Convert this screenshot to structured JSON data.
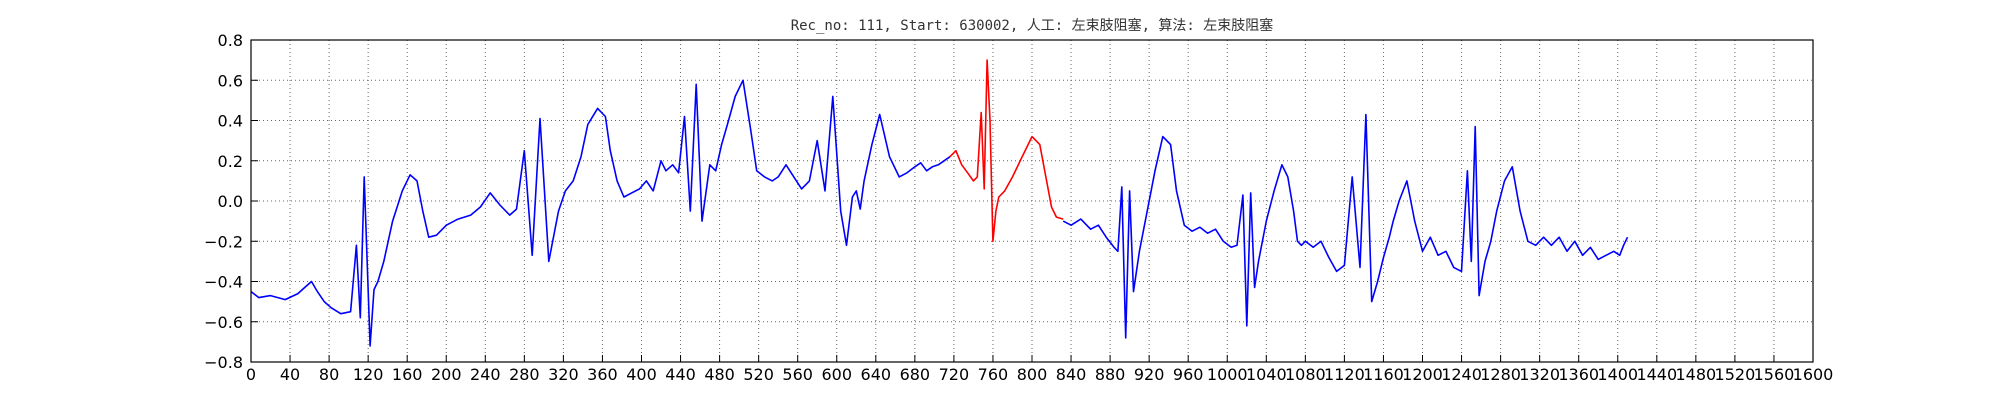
{
  "chart_data": {
    "type": "line",
    "title": "Rec_no: 111, Start: 630002, 人工: 左束肢阻塞, 算法: 左束肢阻塞",
    "xlabel": "",
    "ylabel": "",
    "xlim": [
      0,
      1600
    ],
    "ylim": [
      -0.8,
      0.8
    ],
    "grid": true,
    "yticks": [
      -0.8,
      -0.6,
      -0.4,
      -0.2,
      0.0,
      0.2,
      0.4,
      0.6,
      0.8
    ],
    "ytick_labels": [
      "−0.8",
      "−0.6",
      "−0.4",
      "−0.2",
      "0.0",
      "0.2",
      "0.4",
      "0.6",
      "0.8"
    ],
    "xticks": [
      0,
      40,
      80,
      120,
      160,
      200,
      240,
      280,
      320,
      360,
      400,
      440,
      480,
      520,
      560,
      600,
      640,
      680,
      720,
      760,
      800,
      840,
      880,
      920,
      960,
      1000,
      1040,
      1080,
      1120,
      1160,
      1200,
      1240,
      1280,
      1320,
      1360,
      1400,
      1440,
      1480,
      1520,
      1560,
      1600
    ],
    "series": [
      {
        "color": "#0000ff",
        "x": [
          0,
          8,
          20,
          35,
          48,
          55,
          62,
          68,
          75,
          82,
          92,
          102,
          108,
          112,
          116,
          122,
          126,
          130,
          136,
          145,
          155,
          163,
          170,
          176,
          182,
          190,
          200,
          212,
          225,
          235,
          245,
          255,
          265,
          272,
          280,
          288,
          296,
          305,
          315,
          322,
          330,
          338,
          345,
          355,
          363,
          368,
          375,
          382,
          390,
          398,
          405,
          412,
          420,
          425,
          432,
          438,
          444,
          450,
          456,
          462,
          470,
          476,
          482,
          488,
          496,
          504,
          512,
          518,
          526,
          534,
          540,
          548,
          556,
          564,
          572,
          580,
          588,
          596,
          604,
          610,
          616,
          620,
          624,
          628,
          636,
          644,
          654,
          664,
          672,
          680,
          686,
          692,
          698,
          704,
          710,
          716
        ],
        "y": [
          -0.45,
          -0.48,
          -0.47,
          -0.49,
          -0.46,
          -0.43,
          -0.4,
          -0.45,
          -0.5,
          -0.53,
          -0.56,
          -0.55,
          -0.22,
          -0.58,
          0.12,
          -0.72,
          -0.44,
          -0.4,
          -0.3,
          -0.1,
          0.05,
          0.13,
          0.1,
          -0.05,
          -0.18,
          -0.17,
          -0.12,
          -0.09,
          -0.07,
          -0.03,
          0.04,
          -0.02,
          -0.07,
          -0.04,
          0.25,
          -0.27,
          0.41,
          -0.3,
          -0.05,
          0.05,
          0.1,
          0.22,
          0.38,
          0.46,
          0.42,
          0.25,
          0.1,
          0.02,
          0.04,
          0.06,
          0.1,
          0.05,
          0.2,
          0.15,
          0.18,
          0.14,
          0.42,
          -0.05,
          0.58,
          -0.1,
          0.18,
          0.15,
          0.28,
          0.38,
          0.52,
          0.6,
          0.35,
          0.15,
          0.12,
          0.1,
          0.12,
          0.18,
          0.12,
          0.06,
          0.1,
          0.3,
          0.05,
          0.52,
          -0.05,
          -0.22,
          0.02,
          0.05,
          -0.04,
          0.1,
          0.28,
          0.43,
          0.22,
          0.12,
          0.14,
          0.17,
          0.19,
          0.15,
          0.17,
          0.18,
          0.2,
          0.22
        ]
      },
      {
        "color": "#ff0000",
        "x": [
          716,
          722,
          728,
          734,
          740,
          744,
          748,
          751,
          754,
          757,
          760,
          763,
          766,
          772,
          780,
          790,
          800,
          808,
          815,
          820,
          825,
          832
        ],
        "y": [
          0.22,
          0.25,
          0.18,
          0.14,
          0.1,
          0.12,
          0.44,
          0.06,
          0.7,
          0.4,
          -0.2,
          -0.05,
          0.02,
          0.05,
          0.12,
          0.22,
          0.32,
          0.28,
          0.1,
          -0.03,
          -0.08,
          -0.09
        ]
      },
      {
        "color": "#0000ff",
        "x": [
          832,
          840,
          850,
          860,
          868,
          876,
          884,
          888,
          892,
          896,
          900,
          904,
          910,
          918,
          926,
          934,
          942,
          948,
          956,
          964,
          972,
          980,
          988,
          996,
          1004,
          1010,
          1016,
          1020,
          1024,
          1028,
          1032,
          1036,
          1040,
          1048,
          1056,
          1062,
          1068,
          1072,
          1076,
          1080,
          1088,
          1096,
          1104,
          1112,
          1120,
          1128,
          1136,
          1142,
          1148,
          1154,
          1160,
          1166,
          1170,
          1176,
          1184,
          1192,
          1200,
          1208,
          1216,
          1224,
          1232,
          1240,
          1246,
          1250,
          1254,
          1258,
          1264,
          1270,
          1276,
          1284,
          1292,
          1300,
          1308,
          1316,
          1324,
          1332,
          1340,
          1348,
          1356,
          1364,
          1372,
          1380,
          1388,
          1396,
          1402,
          1406,
          1410
        ],
        "y": [
          -0.1,
          -0.12,
          -0.09,
          -0.14,
          -0.12,
          -0.18,
          -0.23,
          -0.25,
          0.07,
          -0.68,
          0.05,
          -0.45,
          -0.25,
          -0.05,
          0.15,
          0.32,
          0.28,
          0.05,
          -0.12,
          -0.15,
          -0.13,
          -0.16,
          -0.14,
          -0.2,
          -0.23,
          -0.22,
          0.03,
          -0.62,
          0.04,
          -0.43,
          -0.3,
          -0.2,
          -0.1,
          0.05,
          0.18,
          0.12,
          -0.05,
          -0.2,
          -0.22,
          -0.2,
          -0.23,
          -0.2,
          -0.28,
          -0.35,
          -0.32,
          0.12,
          -0.33,
          0.43,
          -0.5,
          -0.4,
          -0.28,
          -0.18,
          -0.1,
          0.0,
          0.1,
          -0.1,
          -0.25,
          -0.18,
          -0.27,
          -0.25,
          -0.33,
          -0.35,
          0.15,
          -0.3,
          0.37,
          -0.47,
          -0.3,
          -0.2,
          -0.05,
          0.1,
          0.17,
          -0.05,
          -0.2,
          -0.22,
          -0.18,
          -0.22,
          -0.18,
          -0.25,
          -0.2,
          -0.27,
          -0.23,
          -0.29,
          -0.27,
          -0.25,
          -0.27,
          -0.22,
          -0.18
        ]
      }
    ]
  }
}
